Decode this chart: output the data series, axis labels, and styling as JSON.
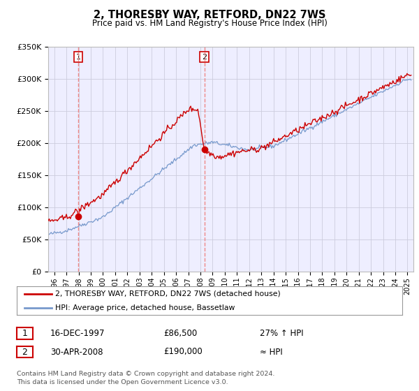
{
  "title": "2, THORESBY WAY, RETFORD, DN22 7WS",
  "subtitle": "Price paid vs. HM Land Registry's House Price Index (HPI)",
  "ylim": [
    0,
    350000
  ],
  "xlim_start": 1995.5,
  "xlim_end": 2025.5,
  "sale1_date": 1997.96,
  "sale1_label": "1",
  "sale1_price": 86500,
  "sale1_text": "16-DEC-1997",
  "sale1_hpi_text": "27% ↑ HPI",
  "sale2_date": 2008.33,
  "sale2_label": "2",
  "sale2_price": 190000,
  "sale2_text": "30-APR-2008",
  "sale2_hpi_text": "≈ HPI",
  "line_color_red": "#cc0000",
  "line_color_blue": "#7799cc",
  "marker_color": "#cc0000",
  "dashed_color": "#ee8888",
  "legend_line1": "2, THORESBY WAY, RETFORD, DN22 7WS (detached house)",
  "legend_line2": "HPI: Average price, detached house, Bassetlaw",
  "footer": "Contains HM Land Registry data © Crown copyright and database right 2024.\nThis data is licensed under the Open Government Licence v3.0.",
  "bg_color": "#ffffff",
  "grid_color": "#ccccdd",
  "plot_bg": "#eeeeff"
}
